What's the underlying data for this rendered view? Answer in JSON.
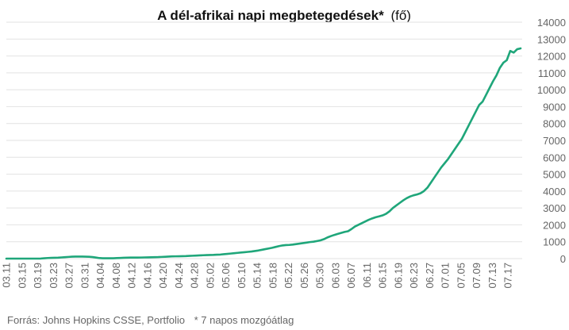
{
  "chart_data": {
    "type": "line",
    "title_bold": "A dél-afrikai napi megbetegedések*",
    "title_unit": "(fő)",
    "x_tick_labels": [
      "03.11",
      "03.15",
      "03.19",
      "03.23",
      "03.27",
      "03.31",
      "04.04",
      "04.08",
      "04.12",
      "04.16",
      "04.20",
      "04.24",
      "04.28",
      "05.02",
      "05.06",
      "05.10",
      "05.14",
      "05.18",
      "05.22",
      "05.26",
      "05.30",
      "06.03",
      "06.07",
      "06.11",
      "06.15",
      "06.19",
      "06.23",
      "06.27",
      "07.01",
      "07.05",
      "07.09",
      "07.13",
      "07.17"
    ],
    "y_tick_labels": [
      "0",
      "1000",
      "2000",
      "3000",
      "4000",
      "5000",
      "6000",
      "7000",
      "8000",
      "9000",
      "10000",
      "11000",
      "12000",
      "13000",
      "14000"
    ],
    "ylim": [
      0,
      14000
    ],
    "y_axis_position": "right",
    "grid": true,
    "legend": "none",
    "series": [
      {
        "color": "#1fa67a",
        "values": [
          0,
          0,
          0,
          0,
          0,
          0,
          0,
          0,
          0,
          0,
          5,
          20,
          35,
          45,
          50,
          55,
          70,
          85,
          100,
          115,
          120,
          120,
          120,
          115,
          110,
          90,
          60,
          30,
          20,
          20,
          20,
          20,
          30,
          40,
          50,
          55,
          60,
          60,
          60,
          65,
          70,
          75,
          80,
          85,
          90,
          100,
          110,
          120,
          130,
          135,
          140,
          145,
          150,
          160,
          170,
          180,
          190,
          200,
          210,
          215,
          220,
          230,
          240,
          260,
          280,
          300,
          320,
          340,
          360,
          380,
          400,
          420,
          450,
          480,
          520,
          560,
          600,
          640,
          690,
          740,
          780,
          800,
          810,
          830,
          860,
          890,
          920,
          950,
          980,
          1000,
          1040,
          1080,
          1150,
          1250,
          1330,
          1400,
          1460,
          1520,
          1580,
          1620,
          1750,
          1900,
          2000,
          2100,
          2200,
          2300,
          2380,
          2450,
          2500,
          2560,
          2650,
          2800,
          3000,
          3150,
          3300,
          3450,
          3580,
          3680,
          3750,
          3800,
          3870,
          4000,
          4200,
          4500,
          4800,
          5100,
          5400,
          5650,
          5900,
          6200,
          6500,
          6800,
          7100,
          7500,
          7900,
          8300,
          8700,
          9100,
          9300,
          9700,
          10100,
          10500,
          10850,
          11300,
          11600,
          11750,
          12300,
          12200,
          12400,
          12450
        ]
      }
    ],
    "annotations": [
      "Forrás: Johns Hopkins CSSE, Portfolio",
      "* 7 napos mozgóátlag"
    ],
    "colors": {
      "line": "#1fa67a",
      "grid": "#e2e2e2",
      "axis_text": "#666666",
      "title": "#111111"
    }
  }
}
